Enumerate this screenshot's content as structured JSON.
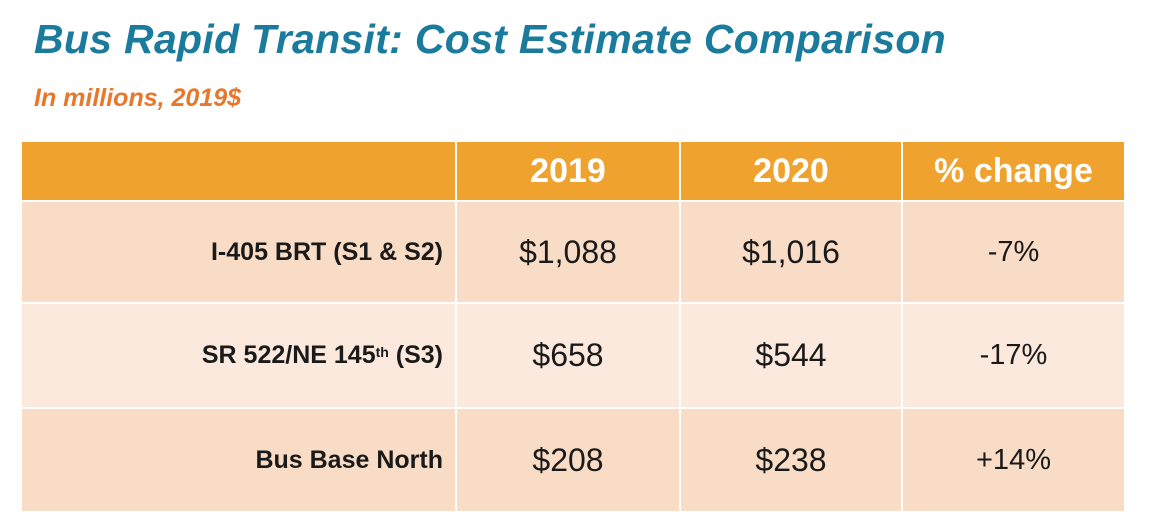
{
  "header": {
    "title": "Bus Rapid Transit: Cost Estimate Comparison",
    "subtitle": "In millions, 2019$"
  },
  "table": {
    "columns": [
      "2019",
      "2020",
      "% change"
    ],
    "rows": [
      {
        "label": "I-405 BRT (S1 & S2)",
        "cells": [
          "$1,088",
          "$1,016",
          "-7%"
        ]
      },
      {
        "label": "SR 522/NE 145",
        "label_sup": "th",
        "label_after": "(S3)",
        "cells": [
          "$658",
          "$544",
          "-17%"
        ]
      },
      {
        "label": "Bus Base North",
        "cells": [
          "$208",
          "$238",
          "+14%"
        ]
      }
    ]
  }
}
